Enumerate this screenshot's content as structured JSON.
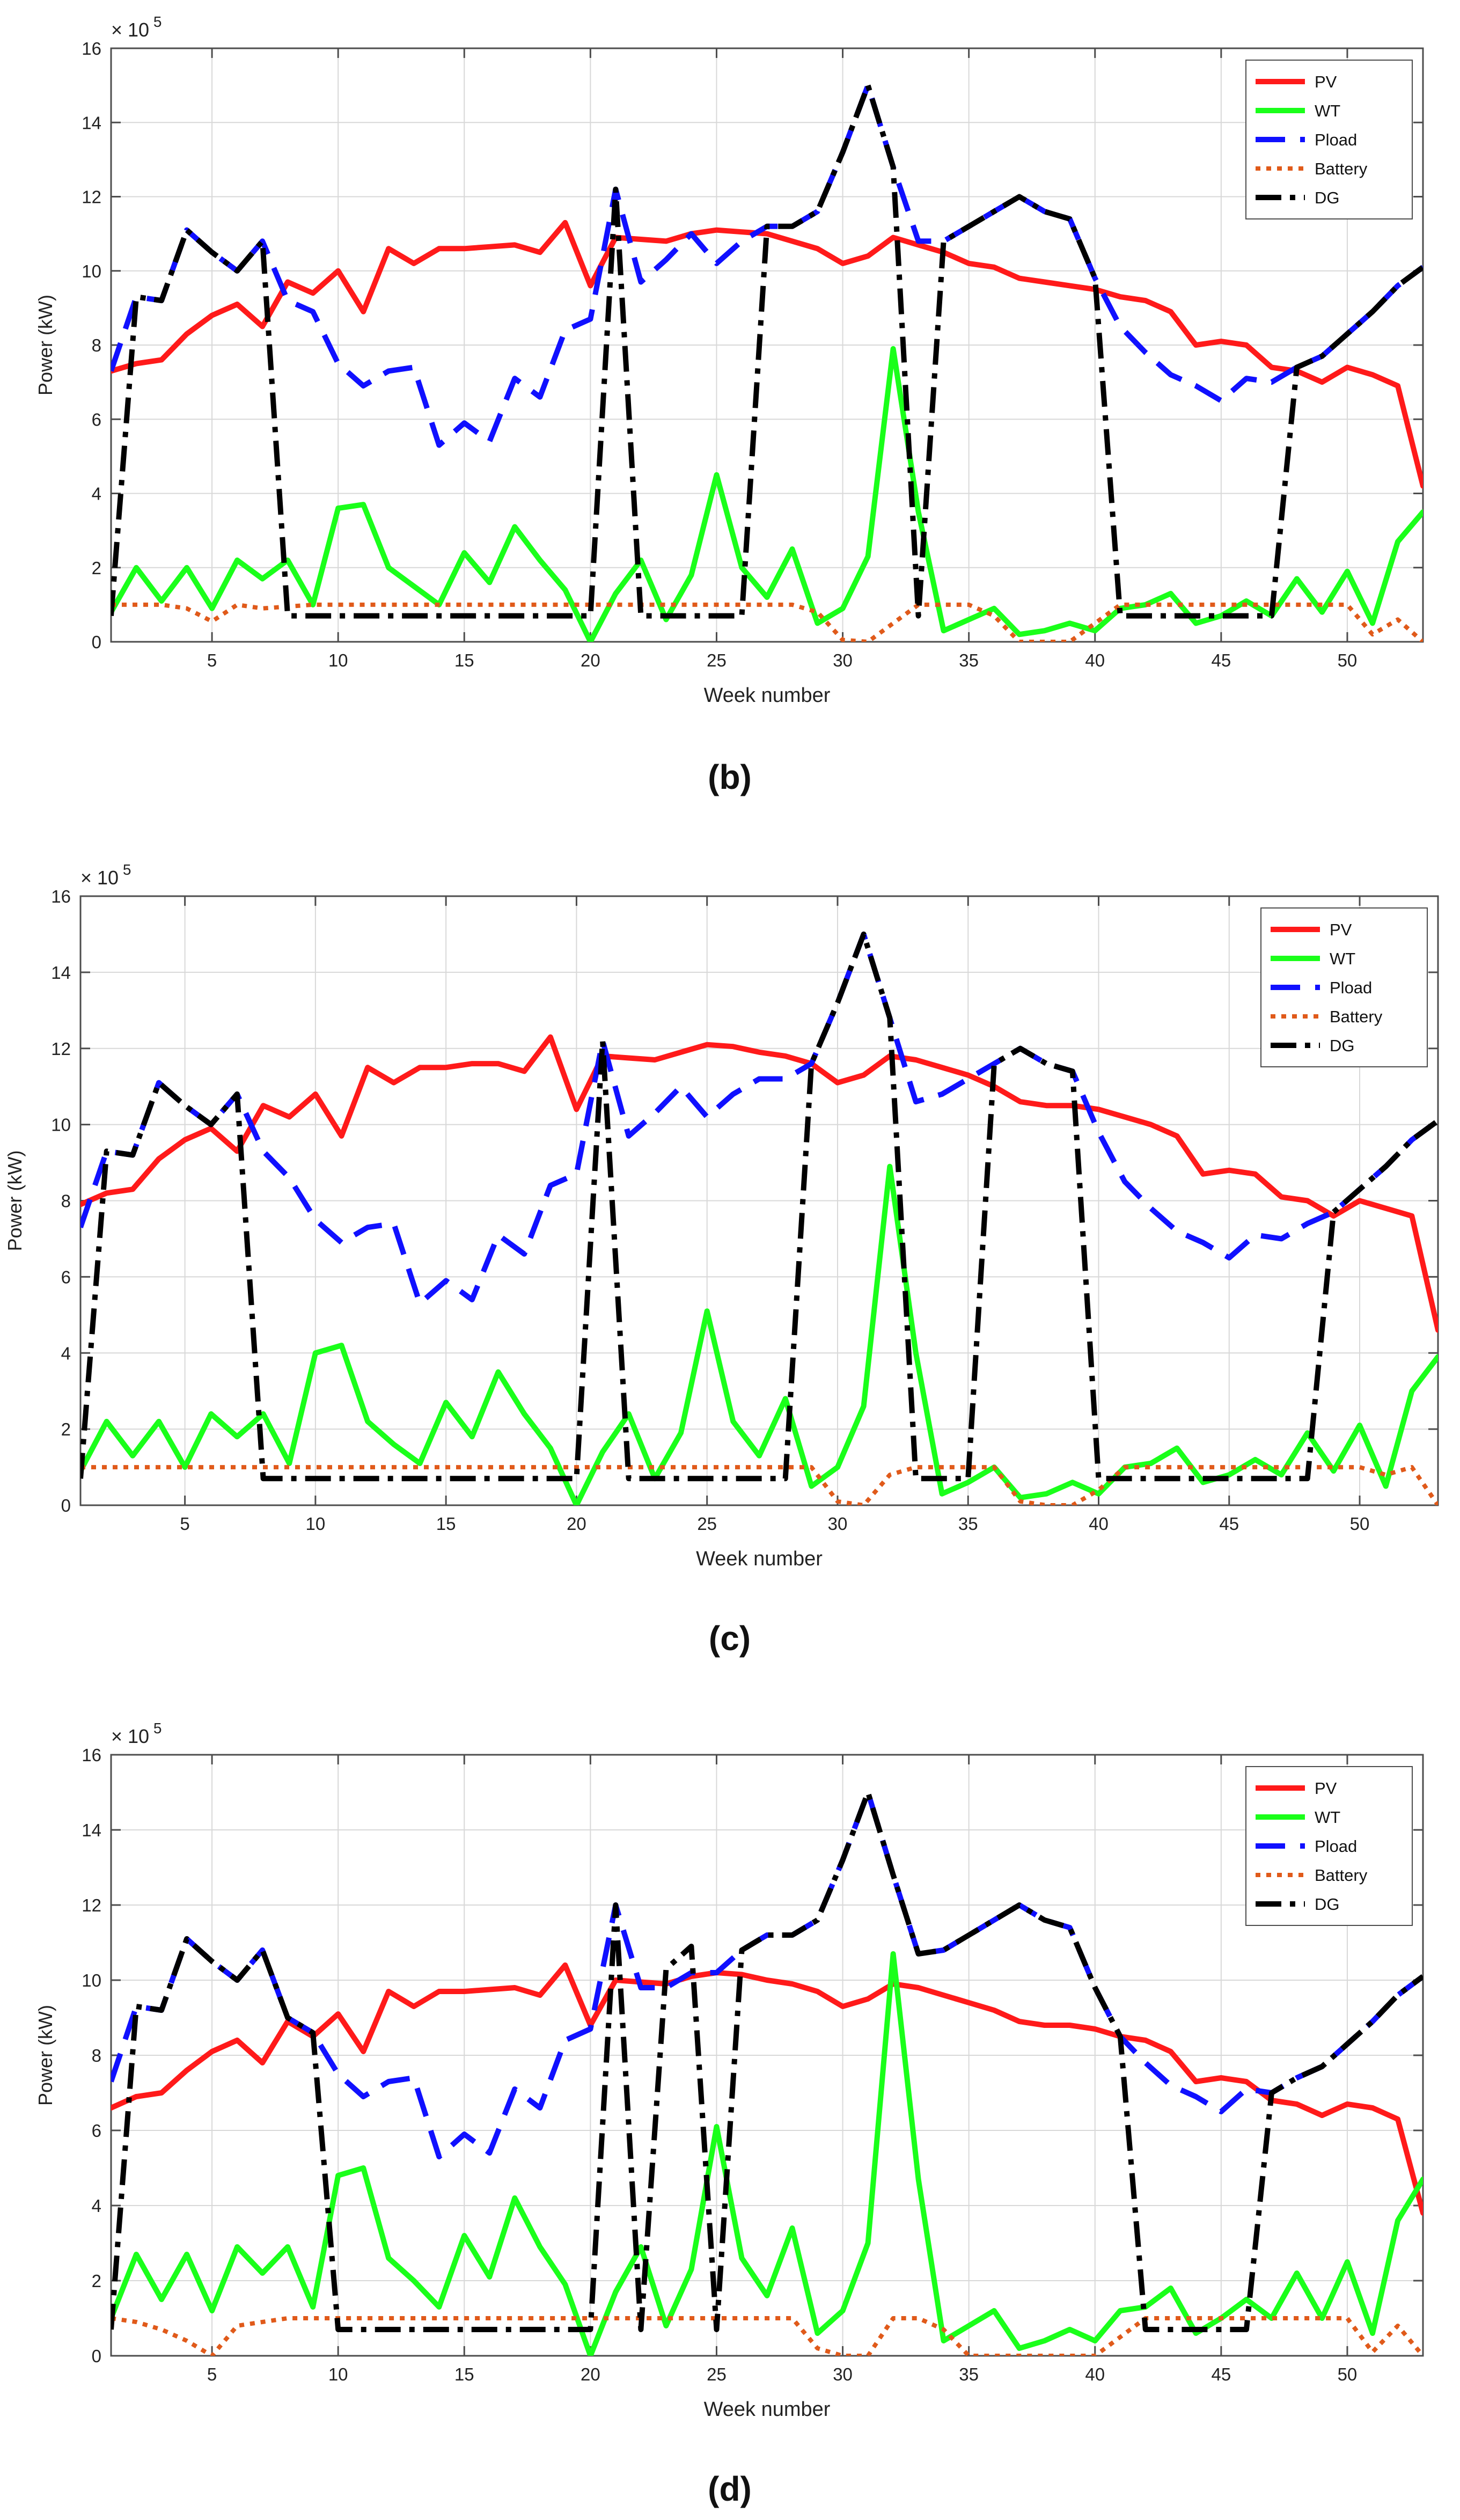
{
  "figure": {
    "panel_labels": [
      "(b)",
      "(c)",
      "(d)"
    ]
  },
  "colors": {
    "PV": "#ff1a1a",
    "WT": "#1aff1a",
    "Pload": "#1010ff",
    "Battery": "#e05a1a",
    "DG": "#000000",
    "grid": "#d8d8d8",
    "axis": "#4d4d4d"
  },
  "chart_data": [
    {
      "type": "line",
      "panel": "(b)",
      "xlabel": "Week number",
      "ylabel": "Power (kW)",
      "y_exponent": "× 10^5",
      "xlim": [
        1,
        53
      ],
      "ylim": [
        0,
        16
      ],
      "xticks": [
        5,
        10,
        15,
        20,
        25,
        30,
        35,
        40,
        45,
        50
      ],
      "yticks": [
        0,
        2,
        4,
        6,
        8,
        10,
        12,
        14,
        16
      ],
      "legend_position": "top-right",
      "series": [
        {
          "name": "PV",
          "style": "solid",
          "values": [
            7.3,
            7.5,
            7.6,
            8.3,
            8.8,
            9.1,
            8.5,
            9.7,
            9.4,
            10.0,
            8.9,
            10.6,
            10.2,
            10.6,
            10.6,
            10.65,
            10.7,
            10.5,
            11.3,
            9.6,
            10.9,
            10.85,
            10.8,
            11.0,
            11.1,
            11.05,
            11.0,
            10.8,
            10.6,
            10.2,
            10.4,
            10.9,
            10.7,
            10.5,
            10.2,
            10.1,
            9.8,
            9.7,
            9.6,
            9.5,
            9.3,
            9.2,
            8.9,
            8.0,
            8.1,
            8.0,
            7.4,
            7.3,
            7.0,
            7.4,
            7.2,
            6.9,
            4.2
          ]
        },
        {
          "name": "WT",
          "style": "solid",
          "values": [
            0.8,
            2.0,
            1.1,
            2.0,
            0.9,
            2.2,
            1.7,
            2.2,
            1.0,
            3.6,
            3.7,
            2.0,
            1.5,
            1.0,
            2.4,
            1.6,
            3.1,
            2.2,
            1.4,
            0.0,
            1.3,
            2.2,
            0.6,
            1.8,
            4.5,
            2.0,
            1.2,
            2.5,
            0.5,
            0.9,
            2.3,
            7.9,
            3.5,
            0.3,
            0.6,
            0.9,
            0.2,
            0.3,
            0.5,
            0.3,
            0.9,
            1.0,
            1.3,
            0.5,
            0.7,
            1.1,
            0.7,
            1.7,
            0.8,
            1.9,
            0.5,
            2.7,
            3.5
          ]
        },
        {
          "name": "Pload",
          "style": "dash",
          "values": [
            7.3,
            9.3,
            9.2,
            11.1,
            10.5,
            10.0,
            10.8,
            9.2,
            8.9,
            7.5,
            6.9,
            7.3,
            7.4,
            5.3,
            5.9,
            5.4,
            7.1,
            6.6,
            8.4,
            8.7,
            12.2,
            9.7,
            10.3,
            11.0,
            10.2,
            10.8,
            11.2,
            11.2,
            11.6,
            13.2,
            15.0,
            12.8,
            10.8,
            10.8,
            11.2,
            11.6,
            12.0,
            11.6,
            11.4,
            9.8,
            8.5,
            7.8,
            7.2,
            6.9,
            6.5,
            7.1,
            7.0,
            7.4,
            7.7,
            8.3,
            8.9,
            9.6,
            10.1
          ]
        },
        {
          "name": "Battery",
          "style": "dot",
          "values": [
            1.0,
            1.0,
            1.0,
            0.9,
            0.55,
            1.0,
            0.9,
            0.95,
            1.0,
            1.0,
            1.0,
            1.0,
            1.0,
            1.0,
            1.0,
            1.0,
            1.0,
            1.0,
            1.0,
            1.0,
            1.0,
            1.0,
            1.0,
            1.0,
            1.0,
            1.0,
            1.0,
            1.0,
            0.8,
            0.05,
            0.0,
            0.5,
            1.0,
            1.0,
            1.0,
            0.7,
            0.0,
            0.0,
            0.0,
            0.5,
            1.0,
            1.0,
            1.0,
            1.0,
            1.0,
            1.0,
            1.0,
            1.0,
            1.0,
            1.0,
            0.2,
            0.6,
            0.0
          ]
        },
        {
          "name": "DG",
          "style": "dashdot",
          "values": [
            0.7,
            9.3,
            9.2,
            11.1,
            10.5,
            10.0,
            10.8,
            0.7,
            0.7,
            0.7,
            0.7,
            0.7,
            0.7,
            0.7,
            0.7,
            0.7,
            0.7,
            0.7,
            0.7,
            0.7,
            12.2,
            0.7,
            0.7,
            0.7,
            0.7,
            0.7,
            11.2,
            11.2,
            11.6,
            13.2,
            15.0,
            12.8,
            0.7,
            10.8,
            11.2,
            11.6,
            12.0,
            11.6,
            11.4,
            9.8,
            0.7,
            0.7,
            0.7,
            0.7,
            0.7,
            0.7,
            0.7,
            7.4,
            7.7,
            8.3,
            8.9,
            9.6,
            10.1
          ]
        }
      ]
    },
    {
      "type": "line",
      "panel": "(c)",
      "xlabel": "Week number",
      "ylabel": "Power (kW)",
      "y_exponent": "× 10^5",
      "xlim": [
        1,
        53
      ],
      "ylim": [
        0,
        16
      ],
      "xticks": [
        5,
        10,
        15,
        20,
        25,
        30,
        35,
        40,
        45,
        50
      ],
      "yticks": [
        0,
        2,
        4,
        6,
        8,
        10,
        12,
        14,
        16
      ],
      "legend_position": "top-right",
      "series": [
        {
          "name": "PV",
          "style": "solid",
          "values": [
            7.9,
            8.2,
            8.3,
            9.1,
            9.6,
            9.9,
            9.3,
            10.5,
            10.2,
            10.8,
            9.7,
            11.5,
            11.1,
            11.5,
            11.5,
            11.6,
            11.6,
            11.4,
            12.3,
            10.4,
            11.8,
            11.75,
            11.7,
            11.9,
            12.1,
            12.05,
            11.9,
            11.8,
            11.6,
            11.1,
            11.3,
            11.8,
            11.7,
            11.5,
            11.3,
            11.0,
            10.6,
            10.5,
            10.5,
            10.4,
            10.2,
            10.0,
            9.7,
            8.7,
            8.8,
            8.7,
            8.1,
            8.0,
            7.6,
            8.0,
            7.8,
            7.6,
            4.6
          ]
        },
        {
          "name": "WT",
          "style": "solid",
          "values": [
            0.9,
            2.2,
            1.3,
            2.2,
            1.0,
            2.4,
            1.8,
            2.4,
            1.1,
            4.0,
            4.2,
            2.2,
            1.6,
            1.1,
            2.7,
            1.8,
            3.5,
            2.4,
            1.5,
            0.0,
            1.4,
            2.4,
            0.7,
            1.9,
            5.1,
            2.2,
            1.3,
            2.8,
            0.5,
            1.0,
            2.6,
            8.9,
            4.0,
            0.3,
            0.6,
            1.0,
            0.2,
            0.3,
            0.6,
            0.3,
            1.0,
            1.1,
            1.5,
            0.6,
            0.8,
            1.2,
            0.8,
            1.9,
            0.9,
            2.1,
            0.5,
            3.0,
            3.9
          ]
        },
        {
          "name": "Pload",
          "style": "dash",
          "values": [
            7.3,
            9.3,
            9.2,
            11.1,
            10.5,
            10.0,
            10.8,
            9.3,
            8.6,
            7.5,
            6.9,
            7.3,
            7.4,
            5.3,
            5.9,
            5.4,
            7.1,
            6.6,
            8.4,
            8.7,
            12.2,
            9.7,
            10.3,
            11.0,
            10.2,
            10.8,
            11.2,
            11.2,
            11.6,
            13.2,
            15.0,
            12.8,
            10.6,
            10.8,
            11.2,
            11.6,
            12.0,
            11.6,
            11.4,
            9.8,
            8.5,
            7.8,
            7.2,
            6.9,
            6.5,
            7.1,
            7.0,
            7.4,
            7.7,
            8.3,
            8.9,
            9.6,
            10.1
          ]
        },
        {
          "name": "Battery",
          "style": "dot",
          "values": [
            1.0,
            1.0,
            1.0,
            1.0,
            1.0,
            1.0,
            1.0,
            1.0,
            1.0,
            1.0,
            1.0,
            1.0,
            1.0,
            1.0,
            1.0,
            1.0,
            1.0,
            1.0,
            1.0,
            1.0,
            1.0,
            1.0,
            1.0,
            1.0,
            1.0,
            1.0,
            1.0,
            1.0,
            1.0,
            0.1,
            0.0,
            0.8,
            1.0,
            1.0,
            1.0,
            1.0,
            0.1,
            0.0,
            0.0,
            0.4,
            1.0,
            1.0,
            1.0,
            1.0,
            1.0,
            1.0,
            1.0,
            1.0,
            1.0,
            1.0,
            0.8,
            1.0,
            0.0
          ]
        },
        {
          "name": "DG",
          "style": "dashdot",
          "values": [
            0.7,
            9.3,
            9.2,
            11.1,
            10.5,
            10.0,
            10.8,
            0.7,
            0.7,
            0.7,
            0.7,
            0.7,
            0.7,
            0.7,
            0.7,
            0.7,
            0.7,
            0.7,
            0.7,
            0.7,
            12.2,
            0.7,
            0.7,
            0.7,
            0.7,
            0.7,
            0.7,
            0.7,
            11.6,
            13.2,
            15.0,
            12.8,
            0.7,
            0.7,
            0.7,
            11.6,
            12.0,
            11.6,
            11.4,
            0.7,
            0.7,
            0.7,
            0.7,
            0.7,
            0.7,
            0.7,
            0.7,
            0.7,
            7.7,
            8.3,
            8.9,
            9.6,
            10.1
          ]
        }
      ]
    },
    {
      "type": "line",
      "panel": "(d)",
      "xlabel": "Week number",
      "ylabel": "Power (kW)",
      "y_exponent": "× 10^5",
      "xlim": [
        1,
        53
      ],
      "ylim": [
        0,
        16
      ],
      "xticks": [
        5,
        10,
        15,
        20,
        25,
        30,
        35,
        40,
        45,
        50
      ],
      "yticks": [
        0,
        2,
        4,
        6,
        8,
        10,
        12,
        14,
        16
      ],
      "legend_position": "top-right",
      "series": [
        {
          "name": "PV",
          "style": "solid",
          "values": [
            6.6,
            6.9,
            7.0,
            7.6,
            8.1,
            8.4,
            7.8,
            8.9,
            8.5,
            9.1,
            8.1,
            9.7,
            9.3,
            9.7,
            9.7,
            9.75,
            9.8,
            9.6,
            10.4,
            8.8,
            10.0,
            9.95,
            9.9,
            10.1,
            10.2,
            10.15,
            10.0,
            9.9,
            9.7,
            9.3,
            9.5,
            9.9,
            9.8,
            9.6,
            9.4,
            9.2,
            8.9,
            8.8,
            8.8,
            8.7,
            8.5,
            8.4,
            8.1,
            7.3,
            7.4,
            7.3,
            6.8,
            6.7,
            6.4,
            6.7,
            6.6,
            6.3,
            3.8
          ]
        },
        {
          "name": "WT",
          "style": "solid",
          "values": [
            1.0,
            2.7,
            1.5,
            2.7,
            1.2,
            2.9,
            2.2,
            2.9,
            1.3,
            4.8,
            5.0,
            2.6,
            2.0,
            1.3,
            3.2,
            2.1,
            4.2,
            2.9,
            1.9,
            0.0,
            1.7,
            2.9,
            0.8,
            2.3,
            6.1,
            2.6,
            1.6,
            3.4,
            0.6,
            1.2,
            3.0,
            10.7,
            4.7,
            0.4,
            0.8,
            1.2,
            0.2,
            0.4,
            0.7,
            0.4,
            1.2,
            1.3,
            1.8,
            0.6,
            1.0,
            1.5,
            1.0,
            2.2,
            1.0,
            2.5,
            0.6,
            3.6,
            4.7
          ]
        },
        {
          "name": "Pload",
          "style": "dash",
          "values": [
            7.3,
            9.3,
            9.2,
            11.1,
            10.5,
            10.0,
            10.8,
            9.0,
            8.6,
            7.5,
            6.9,
            7.3,
            7.4,
            5.3,
            5.9,
            5.4,
            7.1,
            6.6,
            8.4,
            8.7,
            12.0,
            9.8,
            9.8,
            10.2,
            10.2,
            10.8,
            11.2,
            11.2,
            11.6,
            13.2,
            15.0,
            12.8,
            10.7,
            10.8,
            11.2,
            11.6,
            12.0,
            11.6,
            11.4,
            9.8,
            8.5,
            7.8,
            7.2,
            6.9,
            6.5,
            7.1,
            7.0,
            7.4,
            7.7,
            8.3,
            8.9,
            9.6,
            10.1
          ]
        },
        {
          "name": "Battery",
          "style": "dot",
          "values": [
            1.0,
            0.9,
            0.7,
            0.4,
            0.0,
            0.8,
            0.9,
            1.0,
            1.0,
            1.0,
            1.0,
            1.0,
            1.0,
            1.0,
            1.0,
            1.0,
            1.0,
            1.0,
            1.0,
            1.0,
            1.0,
            1.0,
            1.0,
            1.0,
            1.0,
            1.0,
            1.0,
            1.0,
            0.2,
            0.0,
            0.0,
            1.0,
            1.0,
            0.7,
            0.0,
            0.0,
            0.0,
            0.0,
            0.0,
            0.0,
            0.5,
            1.0,
            1.0,
            1.0,
            1.0,
            1.0,
            1.0,
            1.0,
            1.0,
            1.0,
            0.1,
            0.8,
            0.0
          ]
        },
        {
          "name": "DG",
          "style": "dashdot",
          "values": [
            0.7,
            9.3,
            9.2,
            11.1,
            10.5,
            10.0,
            10.8,
            9.0,
            8.6,
            0.7,
            0.7,
            0.7,
            0.7,
            0.7,
            0.7,
            0.7,
            0.7,
            0.7,
            0.7,
            0.7,
            12.0,
            0.7,
            10.3,
            10.9,
            0.7,
            10.8,
            11.2,
            11.2,
            11.6,
            13.2,
            15.0,
            12.8,
            10.7,
            10.8,
            11.2,
            11.6,
            12.0,
            11.6,
            11.4,
            9.8,
            8.5,
            0.7,
            0.7,
            0.7,
            0.7,
            0.7,
            7.0,
            7.4,
            7.7,
            8.3,
            8.9,
            9.6,
            10.1
          ]
        }
      ]
    }
  ]
}
